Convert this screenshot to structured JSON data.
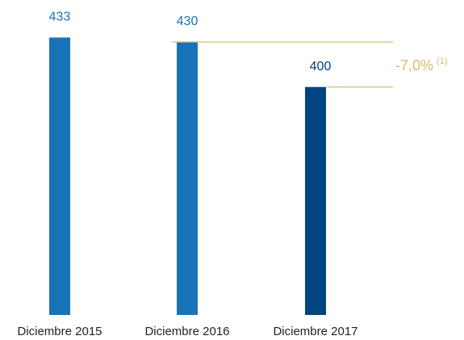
{
  "chart_data": {
    "type": "bar",
    "categories": [
      "Diciembre 2015",
      "Diciembre 2016",
      "Diciembre 2017"
    ],
    "values": [
      433,
      430,
      400
    ],
    "colors": [
      "#1973b8",
      "#1973b8",
      "#004481"
    ],
    "ylim": [
      248,
      458
    ],
    "annotation": {
      "text": "-7,0%",
      "note": "(1)",
      "color": "#d6bb6f"
    }
  }
}
